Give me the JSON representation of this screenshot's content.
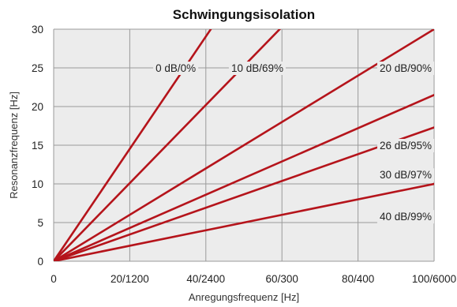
{
  "chart_data": {
    "type": "line",
    "title": "Schwingungsisolation",
    "xlabel": "Anregungsfrequenz [Hz]",
    "ylabel": "Resonanzfrequenz [Hz]",
    "xlim": [
      0,
      100
    ],
    "ylim": [
      0,
      30
    ],
    "x_ticks": [
      0,
      20,
      40,
      60,
      80,
      100
    ],
    "x_tick_labels": [
      "0",
      "20/1200",
      "40/2400",
      "60/300",
      "80/400",
      "100/6000"
    ],
    "y_ticks": [
      0,
      5,
      10,
      15,
      20,
      25,
      30
    ],
    "y_tick_labels": [
      "0",
      "5",
      "10",
      "15",
      "20",
      "25",
      "30"
    ],
    "grid": true,
    "line_color": "#b5141b",
    "plot_background": "#ececec",
    "series": [
      {
        "name": "0 dB/0%",
        "x": [
          0,
          42
        ],
        "y": [
          0,
          30.5
        ]
      },
      {
        "name": "10 dB/69%",
        "x": [
          0,
          60
        ],
        "y": [
          0,
          30.3
        ]
      },
      {
        "name": "20 dB/90%",
        "x": [
          0,
          100
        ],
        "y": [
          0,
          30
        ]
      },
      {
        "name": "26 dB/95%",
        "x": [
          0,
          100
        ],
        "y": [
          0,
          21.5
        ]
      },
      {
        "name": "30 dB/97%",
        "x": [
          0,
          100
        ],
        "y": [
          0,
          17.3
        ]
      },
      {
        "name": "40 dB/99%",
        "x": [
          0,
          100
        ],
        "y": [
          0,
          10
        ]
      }
    ]
  }
}
